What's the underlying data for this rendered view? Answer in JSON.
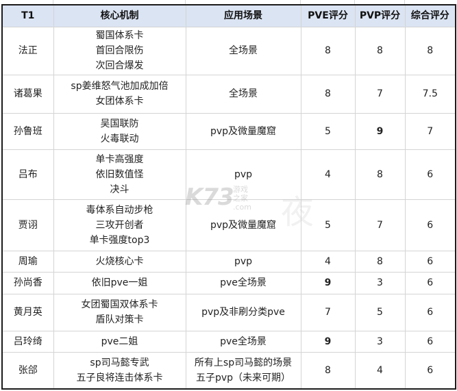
{
  "headers": [
    "T1",
    "核心机制",
    "应用场景",
    "PVE评分",
    "PVP评分",
    "综合评分"
  ],
  "rows": [
    {
      "name": "法正",
      "mechanics": [
        "蜀国体系卡",
        "首回合限伤",
        "次回合爆发"
      ],
      "scene": [
        "全场景"
      ],
      "pve": "8",
      "pvp": "8",
      "overall": "8",
      "bold": []
    },
    {
      "name": "诸葛果",
      "mechanics": [
        "sp姜维怒气池加成加倍",
        "女团体系卡"
      ],
      "scene": [
        "全场景"
      ],
      "pve": "8",
      "pvp": "7",
      "overall": "7.5",
      "bold": []
    },
    {
      "name": "孙鲁班",
      "mechanics": [
        "吴国联防",
        "火毒联动"
      ],
      "scene": [
        "pvp及微量魔窟"
      ],
      "pve": "5",
      "pvp": "9",
      "overall": "7",
      "bold": [
        "pvp"
      ]
    },
    {
      "name": "吕布",
      "mechanics": [
        "单卡高强度",
        "依旧数值怪",
        "决斗"
      ],
      "scene": [
        "pvp"
      ],
      "pve": "4",
      "pvp": "8",
      "overall": "6",
      "bold": []
    },
    {
      "name": "贾诩",
      "mechanics": [
        "毒体系自动步枪",
        "三攻开创者",
        "单卡强度top3"
      ],
      "scene": [
        "pvp及微量魔窟"
      ],
      "pve": "5",
      "pvp": "7",
      "overall": "6",
      "bold": []
    },
    {
      "name": "周瑜",
      "mechanics": [
        "火烧核心卡"
      ],
      "scene": [
        "pvp"
      ],
      "pve": "4",
      "pvp": "8",
      "overall": "6",
      "bold": []
    },
    {
      "name": "孙尚香",
      "mechanics": [
        "依旧pve一姐"
      ],
      "scene": [
        "pve全场景"
      ],
      "pve": "9",
      "pvp": "3",
      "overall": "6",
      "bold": [
        "pve"
      ]
    },
    {
      "name": "黄月英",
      "mechanics": [
        "女团蜀国双体系卡",
        "盾队对策卡"
      ],
      "scene": [
        "pvp及非刷分类pve"
      ],
      "pve": "7",
      "pvp": "5",
      "overall": "6",
      "bold": []
    },
    {
      "name": "吕玲绮",
      "mechanics": [
        "pve二姐"
      ],
      "scene": [
        "pve全场景"
      ],
      "pve": "9",
      "pvp": "3",
      "overall": "6",
      "bold": [
        "pve"
      ]
    },
    {
      "name": "张郃",
      "mechanics": [
        "sp司马懿专武",
        "五子良将连击体系卡"
      ],
      "scene": [
        "所有上sp司马懿的场景",
        "五子pvp（未来可期）"
      ],
      "pve": "8",
      "pvp": "4",
      "overall": "6",
      "bold": []
    }
  ],
  "watermark": {
    "logo": "K73",
    "site": "游戏之家",
    "domain": ".com",
    "char": "夜"
  },
  "colors": {
    "header_bg": "#dbe4f3",
    "border": "#1a1a1a",
    "grid": "#d4d4d4"
  }
}
